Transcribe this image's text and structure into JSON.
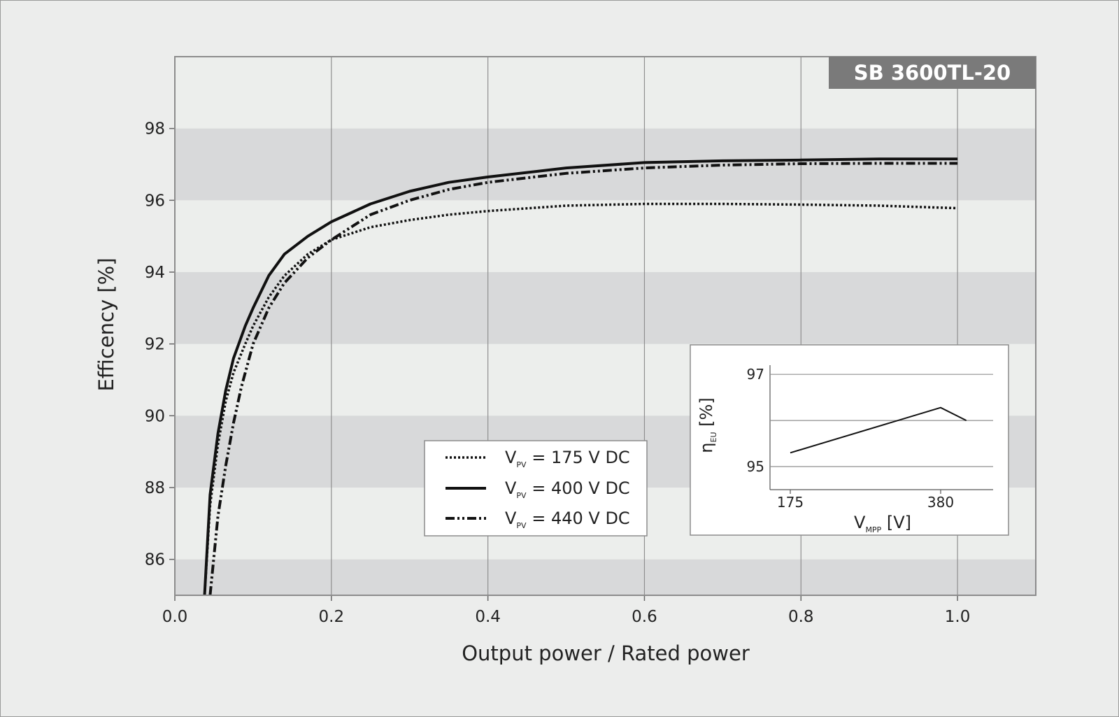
{
  "chart_data": {
    "type": "line",
    "badge": "SB 3600TL-20",
    "xlabel": "Output power / Rated power",
    "ylabel": "Efficency [%]",
    "xlim": [
      0,
      1.1
    ],
    "ylim": [
      85,
      100
    ],
    "x_ticks": [
      "0.0",
      "0.2",
      "0.4",
      "0.6",
      "0.8",
      "1.0"
    ],
    "y_ticks": [
      "98",
      "96",
      "94",
      "92",
      "90",
      "88",
      "86"
    ],
    "grid": true,
    "legend_position": "bottom-center",
    "series": [
      {
        "label_main": "V",
        "label_sub": "PV",
        "label_rest": " = 175 V DC",
        "style": "dotted",
        "x": [
          0.038,
          0.045,
          0.055,
          0.065,
          0.075,
          0.09,
          0.1,
          0.12,
          0.14,
          0.17,
          0.2,
          0.25,
          0.3,
          0.35,
          0.4,
          0.5,
          0.6,
          0.7,
          0.8,
          0.9,
          1.0
        ],
        "y": [
          85.0,
          87.5,
          89.2,
          90.4,
          91.2,
          92.0,
          92.5,
          93.3,
          93.9,
          94.5,
          94.9,
          95.25,
          95.45,
          95.6,
          95.7,
          95.85,
          95.9,
          95.9,
          95.88,
          95.85,
          95.78
        ]
      },
      {
        "label_main": "V",
        "label_sub": "PV",
        "label_rest": " = 400 V DC",
        "style": "solid",
        "x": [
          0.038,
          0.045,
          0.055,
          0.065,
          0.075,
          0.09,
          0.1,
          0.12,
          0.14,
          0.17,
          0.2,
          0.25,
          0.3,
          0.35,
          0.4,
          0.5,
          0.6,
          0.7,
          0.8,
          0.9,
          1.0
        ],
        "y": [
          85.0,
          87.8,
          89.5,
          90.7,
          91.6,
          92.5,
          93.0,
          93.9,
          94.5,
          95.0,
          95.4,
          95.9,
          96.25,
          96.5,
          96.65,
          96.9,
          97.05,
          97.1,
          97.12,
          97.15,
          97.15
        ]
      },
      {
        "label_main": "V",
        "label_sub": "PV",
        "label_rest": " = 440 V DC",
        "style": "dash-dot-dot",
        "x": [
          0.045,
          0.055,
          0.065,
          0.075,
          0.085,
          0.1,
          0.12,
          0.14,
          0.17,
          0.2,
          0.25,
          0.3,
          0.35,
          0.4,
          0.5,
          0.6,
          0.7,
          0.8,
          0.9,
          1.0
        ],
        "y": [
          85.0,
          87.2,
          88.6,
          89.8,
          90.8,
          92.0,
          93.0,
          93.7,
          94.4,
          94.9,
          95.6,
          96.0,
          96.3,
          96.5,
          96.75,
          96.9,
          96.98,
          97.02,
          97.03,
          97.03
        ]
      }
    ],
    "inset": {
      "xlabel_main": "V",
      "xlabel_sub": "MPP",
      "xlabel_rest": " [V]",
      "ylabel_main": "η",
      "ylabel_sub": "EU",
      "ylabel_rest": " [%]",
      "x_ticks": [
        "175",
        "380"
      ],
      "y_ticks": [
        "97",
        "95"
      ],
      "ylim": [
        94.5,
        97.2
      ],
      "x": [
        175,
        380,
        415
      ],
      "y": [
        95.3,
        96.28,
        96.0
      ]
    }
  }
}
